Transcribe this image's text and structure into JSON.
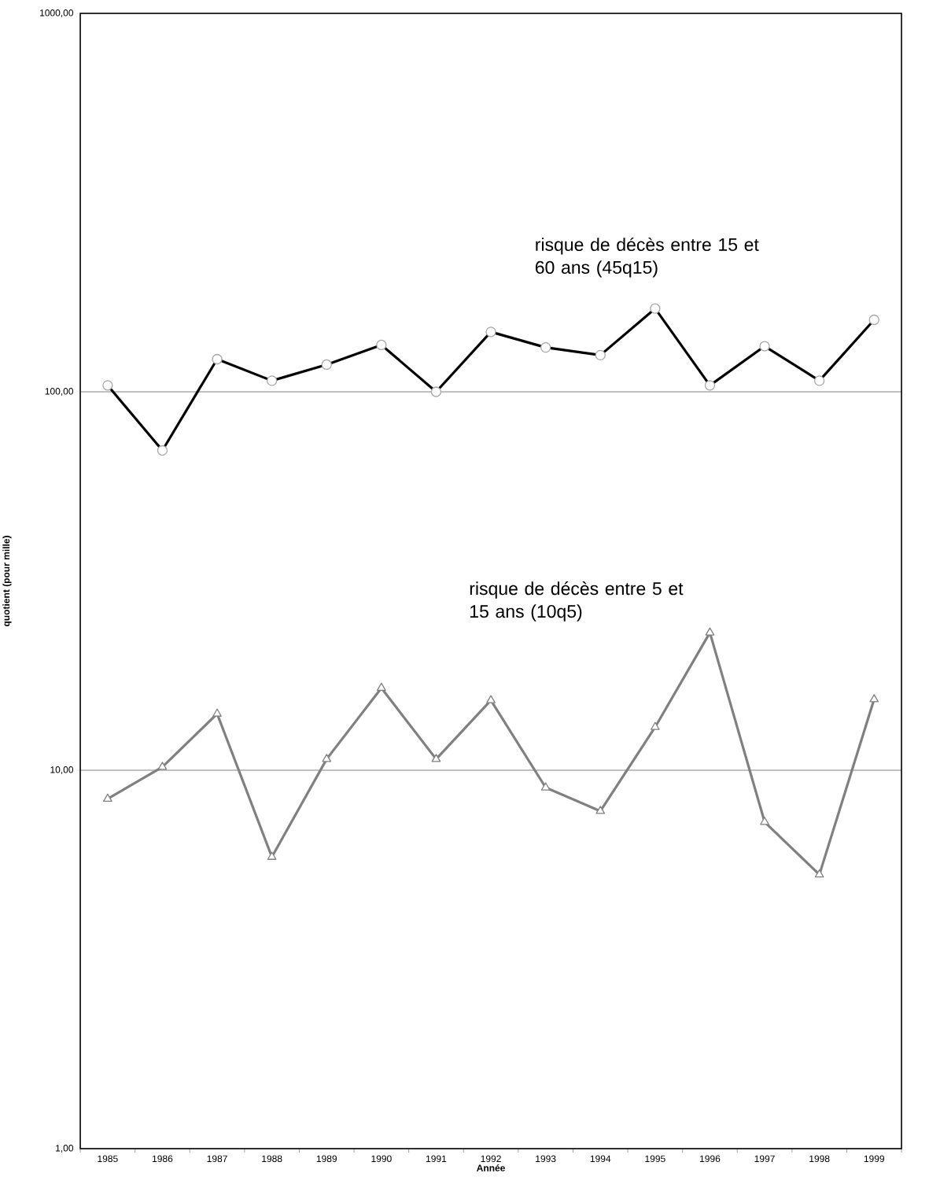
{
  "chart_data": {
    "type": "line",
    "xlabel": "Année",
    "ylabel": "quotient (pour mille)",
    "categories": [
      "1985",
      "1986",
      "1987",
      "1988",
      "1989",
      "1990",
      "1991",
      "1992",
      "1993",
      "1994",
      "1995",
      "1996",
      "1997",
      "1998",
      "1999"
    ],
    "series": [
      {
        "name": "risque de décès entre 15 et 60 ans (45q15)",
        "color": "#000000",
        "marker": "circle",
        "values": [
          104,
          70,
          122,
          107,
          118,
          133,
          100,
          144,
          131,
          125,
          166,
          104,
          132,
          107,
          155
        ]
      },
      {
        "name": "risque de décès entre 5 et 15 ans (10q5)",
        "color": "#808080",
        "marker": "triangle",
        "values": [
          8.4,
          10.2,
          14.1,
          5.9,
          10.7,
          16.5,
          10.7,
          15.3,
          9.0,
          7.8,
          13.0,
          23.1,
          7.3,
          5.3,
          15.4
        ]
      }
    ],
    "log": "y",
    "ylim": [
      1,
      1000
    ],
    "yticks": [
      {
        "value": 1,
        "label": "1,00"
      },
      {
        "value": 10,
        "label": "10,00"
      },
      {
        "value": 100,
        "label": "100,00"
      },
      {
        "value": 1000,
        "label": "1000,00"
      }
    ],
    "grid": "y",
    "legend": false,
    "line_style": "solid"
  }
}
